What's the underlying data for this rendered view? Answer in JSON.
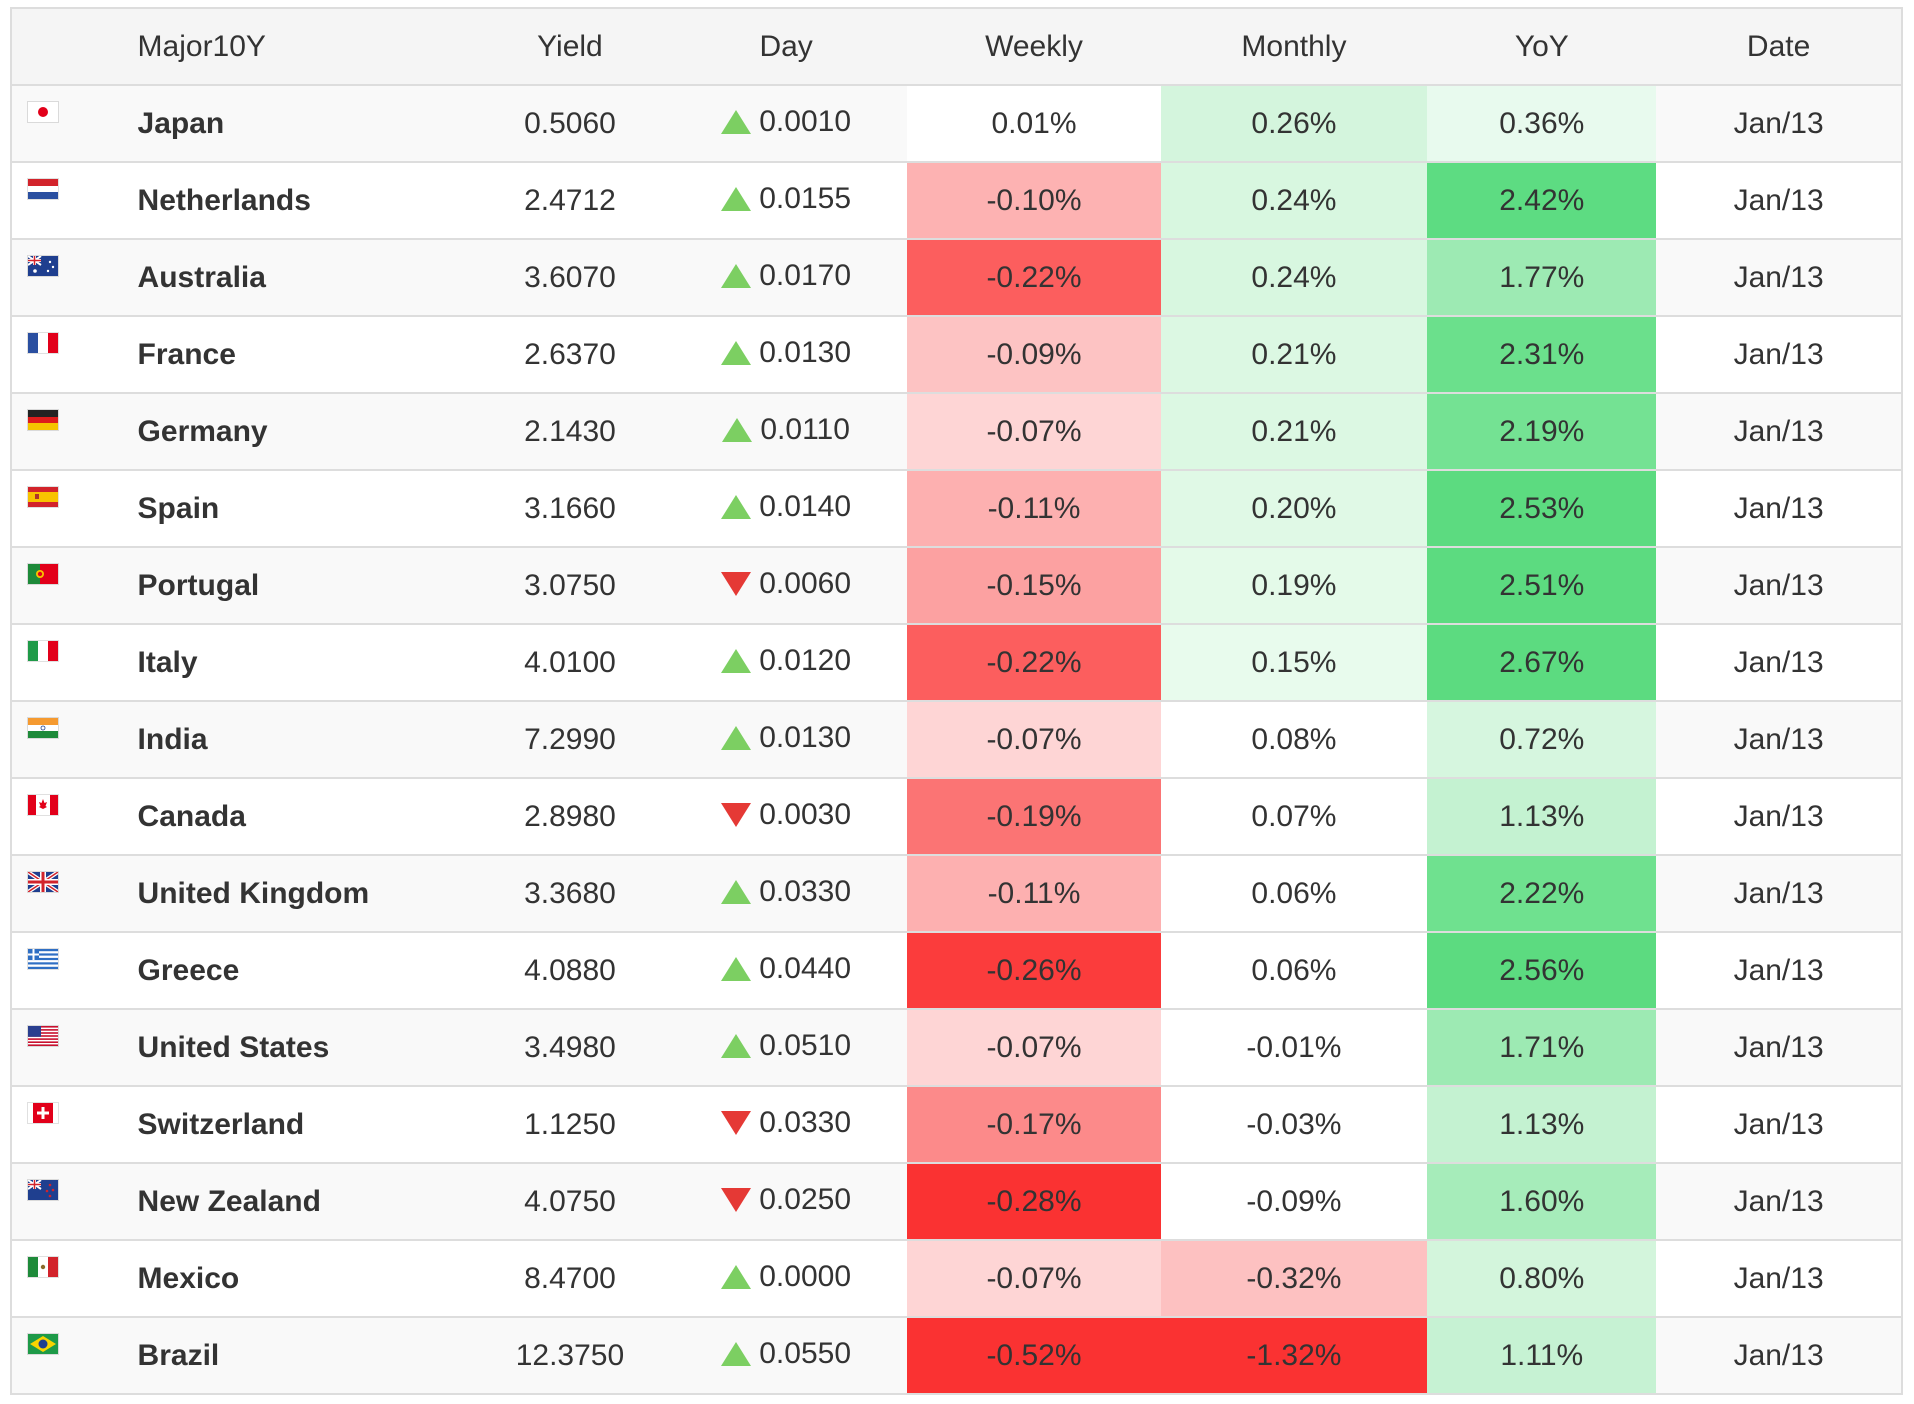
{
  "columns": {
    "flag": "",
    "name": "Major10Y",
    "yield": "Yield",
    "day": "Day",
    "weekly": "Weekly",
    "monthly": "Monthly",
    "yoy": "YoY",
    "date": "Date"
  },
  "rows": [
    {
      "flag": "japan-flag-icon",
      "name": "Japan",
      "yield": "0.5060",
      "day_dir": "up",
      "day": "0.0010",
      "weekly": "0.01%",
      "monthly": "0.26%",
      "yoy": "0.36%",
      "date": "Jan/13",
      "weekly_color": "#ffffff",
      "monthly_color": "#d4f5dd",
      "yoy_color": "#e8faee"
    },
    {
      "flag": "netherlands-flag-icon",
      "name": "Netherlands",
      "yield": "2.4712",
      "day_dir": "up",
      "day": "0.0155",
      "weekly": "-0.10%",
      "monthly": "0.24%",
      "yoy": "2.42%",
      "date": "Jan/13",
      "weekly_color": "#fdb2b2",
      "monthly_color": "#d8f7e0",
      "yoy_color": "#5ddc82"
    },
    {
      "flag": "australia-flag-icon",
      "name": "Australia",
      "yield": "3.6070",
      "day_dir": "up",
      "day": "0.0170",
      "weekly": "-0.22%",
      "monthly": "0.24%",
      "yoy": "1.77%",
      "date": "Jan/13",
      "weekly_color": "#fc5e5e",
      "monthly_color": "#d8f7e0",
      "yoy_color": "#9deab3"
    },
    {
      "flag": "france-flag-icon",
      "name": "France",
      "yield": "2.6370",
      "day_dir": "up",
      "day": "0.0130",
      "weekly": "-0.09%",
      "monthly": "0.21%",
      "yoy": "2.31%",
      "date": "Jan/13",
      "weekly_color": "#fdc3c3",
      "monthly_color": "#dcf8e3",
      "yoy_color": "#6be08c"
    },
    {
      "flag": "germany-flag-icon",
      "name": "Germany",
      "yield": "2.1430",
      "day_dir": "up",
      "day": "0.0110",
      "weekly": "-0.07%",
      "monthly": "0.21%",
      "yoy": "2.19%",
      "date": "Jan/13",
      "weekly_color": "#fed5d5",
      "monthly_color": "#dcf8e3",
      "yoy_color": "#74e293"
    },
    {
      "flag": "spain-flag-icon",
      "name": "Spain",
      "yield": "3.1660",
      "day_dir": "up",
      "day": "0.0140",
      "weekly": "-0.11%",
      "monthly": "0.20%",
      "yoy": "2.53%",
      "date": "Jan/13",
      "weekly_color": "#fdb0b0",
      "monthly_color": "#e0f9e6",
      "yoy_color": "#5cdb80"
    },
    {
      "flag": "portugal-flag-icon",
      "name": "Portugal",
      "yield": "3.0750",
      "day_dir": "down",
      "day": "0.0060",
      "weekly": "-0.15%",
      "monthly": "0.19%",
      "yoy": "2.51%",
      "date": "Jan/13",
      "weekly_color": "#fca1a1",
      "monthly_color": "#e4fae9",
      "yoy_color": "#5cdb80"
    },
    {
      "flag": "italy-flag-icon",
      "name": "Italy",
      "yield": "4.0100",
      "day_dir": "up",
      "day": "0.0120",
      "weekly": "-0.22%",
      "monthly": "0.15%",
      "yoy": "2.67%",
      "date": "Jan/13",
      "weekly_color": "#fc5e5e",
      "monthly_color": "#e8fbed",
      "yoy_color": "#5cdb80"
    },
    {
      "flag": "india-flag-icon",
      "name": "India",
      "yield": "7.2990",
      "day_dir": "up",
      "day": "0.0130",
      "weekly": "-0.07%",
      "monthly": "0.08%",
      "yoy": "0.72%",
      "date": "Jan/13",
      "weekly_color": "#fed5d5",
      "monthly_color": "#ffffff",
      "yoy_color": "#d6f6df"
    },
    {
      "flag": "canada-flag-icon",
      "name": "Canada",
      "yield": "2.8980",
      "day_dir": "down",
      "day": "0.0030",
      "weekly": "-0.19%",
      "monthly": "0.07%",
      "yoy": "1.13%",
      "date": "Jan/13",
      "weekly_color": "#fb7474",
      "monthly_color": "#ffffff",
      "yoy_color": "#c4f2d1"
    },
    {
      "flag": "united-kingdom-flag-icon",
      "name": "United Kingdom",
      "yield": "3.3680",
      "day_dir": "up",
      "day": "0.0330",
      "weekly": "-0.11%",
      "monthly": "0.06%",
      "yoy": "2.22%",
      "date": "Jan/13",
      "weekly_color": "#fdb0b0",
      "monthly_color": "#ffffff",
      "yoy_color": "#6fe18f"
    },
    {
      "flag": "greece-flag-icon",
      "name": "Greece",
      "yield": "4.0880",
      "day_dir": "up",
      "day": "0.0440",
      "weekly": "-0.26%",
      "monthly": "0.06%",
      "yoy": "2.56%",
      "date": "Jan/13",
      "weekly_color": "#fb3c3c",
      "monthly_color": "#ffffff",
      "yoy_color": "#5cdb80"
    },
    {
      "flag": "united-states-flag-icon",
      "name": "United States",
      "yield": "3.4980",
      "day_dir": "up",
      "day": "0.0510",
      "weekly": "-0.07%",
      "monthly": "-0.01%",
      "yoy": "1.71%",
      "date": "Jan/13",
      "weekly_color": "#fed5d5",
      "monthly_color": "#ffffff",
      "yoy_color": "#9deab3"
    },
    {
      "flag": "switzerland-flag-icon",
      "name": "Switzerland",
      "yield": "1.1250",
      "day_dir": "down",
      "day": "0.0330",
      "weekly": "-0.17%",
      "monthly": "-0.03%",
      "yoy": "1.13%",
      "date": "Jan/13",
      "weekly_color": "#fc8a8a",
      "monthly_color": "#ffffff",
      "yoy_color": "#c4f2d1"
    },
    {
      "flag": "new-zealand-flag-icon",
      "name": "New Zealand",
      "yield": "4.0750",
      "day_dir": "down",
      "day": "0.0250",
      "weekly": "-0.28%",
      "monthly": "-0.09%",
      "yoy": "1.60%",
      "date": "Jan/13",
      "weekly_color": "#fa3232",
      "monthly_color": "#ffffff",
      "yoy_color": "#a6ecba"
    },
    {
      "flag": "mexico-flag-icon",
      "name": "Mexico",
      "yield": "8.4700",
      "day_dir": "up",
      "day": "0.0000",
      "weekly": "-0.07%",
      "monthly": "-0.32%",
      "yoy": "0.80%",
      "date": "Jan/13",
      "weekly_color": "#fed5d5",
      "monthly_color": "#fdc1c1",
      "yoy_color": "#d3f5dc"
    },
    {
      "flag": "brazil-flag-icon",
      "name": "Brazil",
      "yield": "12.3750",
      "day_dir": "up",
      "day": "0.0550",
      "weekly": "-0.52%",
      "monthly": "-1.32%",
      "yoy": "1.11%",
      "date": "Jan/13",
      "weekly_color": "#fa3232",
      "monthly_color": "#fa3232",
      "yoy_color": "#c6f2d3"
    }
  ],
  "colors": {
    "up_arrow": "#7ccf62",
    "down_arrow": "#e53935",
    "header_bg": "#f5f5f5",
    "border": "#dddddd"
  }
}
